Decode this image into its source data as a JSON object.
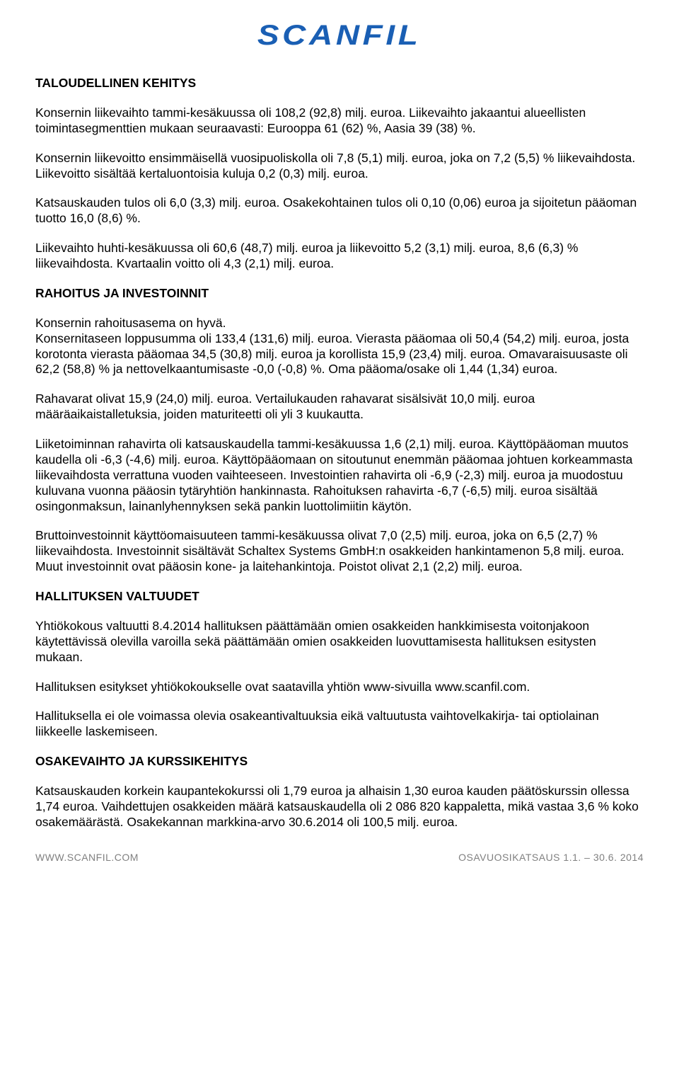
{
  "logo": {
    "text": "SCANFIL",
    "color": "#1a5fb4"
  },
  "sections": {
    "s1": {
      "heading": "TALOUDELLINEN KEHITYS",
      "p1": "Konsernin liikevaihto tammi-kesäkuussa oli 108,2 (92,8) milj. euroa. Liikevaihto jakaantui alueellisten toimintasegmenttien mukaan seuraavasti: Eurooppa 61 (62) %, Aasia 39 (38) %.",
      "p2": "Konsernin liikevoitto ensimmäisellä vuosipuoliskolla oli 7,8 (5,1) milj. euroa, joka on 7,2 (5,5) % liikevaihdosta. Liikevoitto sisältää kertaluontoisia kuluja 0,2 (0,3) milj. euroa.",
      "p3": "Katsauskauden tulos oli 6,0 (3,3) milj. euroa. Osakekohtainen tulos oli 0,10 (0,06) euroa ja sijoitetun pääoman tuotto 16,0 (8,6) %.",
      "p4": "Liikevaihto huhti-kesäkuussa oli 60,6 (48,7) milj. euroa ja liikevoitto 5,2 (3,1) milj. euroa, 8,6 (6,3) % liikevaihdosta. Kvartaalin voitto oli 4,3 (2,1) milj. euroa."
    },
    "s2": {
      "heading": "RAHOITUS JA INVESTOINNIT",
      "p1a": "Konsernin rahoitusasema on hyvä.",
      "p1b": "Konsernitaseen loppusumma oli 133,4 (131,6) milj. euroa. Vierasta pääomaa oli 50,4 (54,2) milj. euroa, josta korotonta vierasta pääomaa 34,5 (30,8) milj. euroa ja korollista 15,9 (23,4) milj. euroa. Omavaraisuusaste oli 62,2 (58,8) % ja nettovelkaantumisaste -0,0 (-0,8) %. Oma pääoma/osake oli 1,44 (1,34) euroa.",
      "p2": "Rahavarat olivat 15,9 (24,0) milj. euroa. Vertailukauden rahavarat sisälsivät 10,0 milj. euroa määräaikaistalletuksia, joiden maturiteetti oli yli 3 kuukautta.",
      "p3": "Liiketoiminnan rahavirta oli katsauskaudella tammi-kesäkuussa 1,6 (2,1) milj. euroa. Käyttöpääoman muutos kaudella oli -6,3 (-4,6) milj. euroa. Käyttöpääomaan on sitoutunut enemmän pääomaa johtuen korkeammasta liikevaihdosta verrattuna vuoden vaihteeseen. Investointien rahavirta oli -6,9 (-2,3) milj. euroa ja muodostuu kuluvana vuonna pääosin tytäryhtiön hankinnasta. Rahoituksen rahavirta -6,7 (-6,5) milj. euroa sisältää osingonmaksun, lainanlyhennyksen sekä pankin luottolimiitin käytön.",
      "p4": "Bruttoinvestoinnit käyttöomaisuuteen tammi-kesäkuussa olivat 7,0 (2,5) milj. euroa, joka on 6,5 (2,7) % liikevaihdosta. Investoinnit sisältävät Schaltex Systems GmbH:n osakkeiden hankintamenon 5,8 milj. euroa. Muut investoinnit ovat pääosin kone- ja laitehankintoja. Poistot olivat 2,1 (2,2) milj. euroa."
    },
    "s3": {
      "heading": "HALLITUKSEN VALTUUDET",
      "p1": "Yhtiökokous valtuutti 8.4.2014 hallituksen päättämään omien osakkeiden hankkimisesta voitonjakoon käytettävissä olevilla varoilla sekä päättämään omien osakkeiden luovuttamisesta hallituksen esitysten mukaan.",
      "p2": "Hallituksen esitykset yhtiökokoukselle ovat saatavilla yhtiön www-sivuilla www.scanfil.com.",
      "p3": "Hallituksella ei ole voimassa olevia osakeantivaltuuksia eikä valtuutusta vaihtovelkakirja- tai optiolainan liikkeelle laskemiseen."
    },
    "s4": {
      "heading": "OSAKEVAIHTO JA KURSSIKEHITYS",
      "p1": "Katsauskauden korkein kaupantekokurssi oli 1,79 euroa ja alhaisin 1,30 euroa kauden päätöskurssin ollessa 1,74 euroa. Vaihdettujen osakkeiden määrä katsauskaudella oli 2 086 820 kappaletta, mikä vastaa 3,6 % koko osakemäärästä. Osakekannan markkina-arvo 30.6.2014 oli 100,5 milj. euroa."
    }
  },
  "footer": {
    "left": "WWW.SCANFIL.COM",
    "right": "OSAVUOSIKATSAUS 1.1. – 30.6. 2014"
  }
}
